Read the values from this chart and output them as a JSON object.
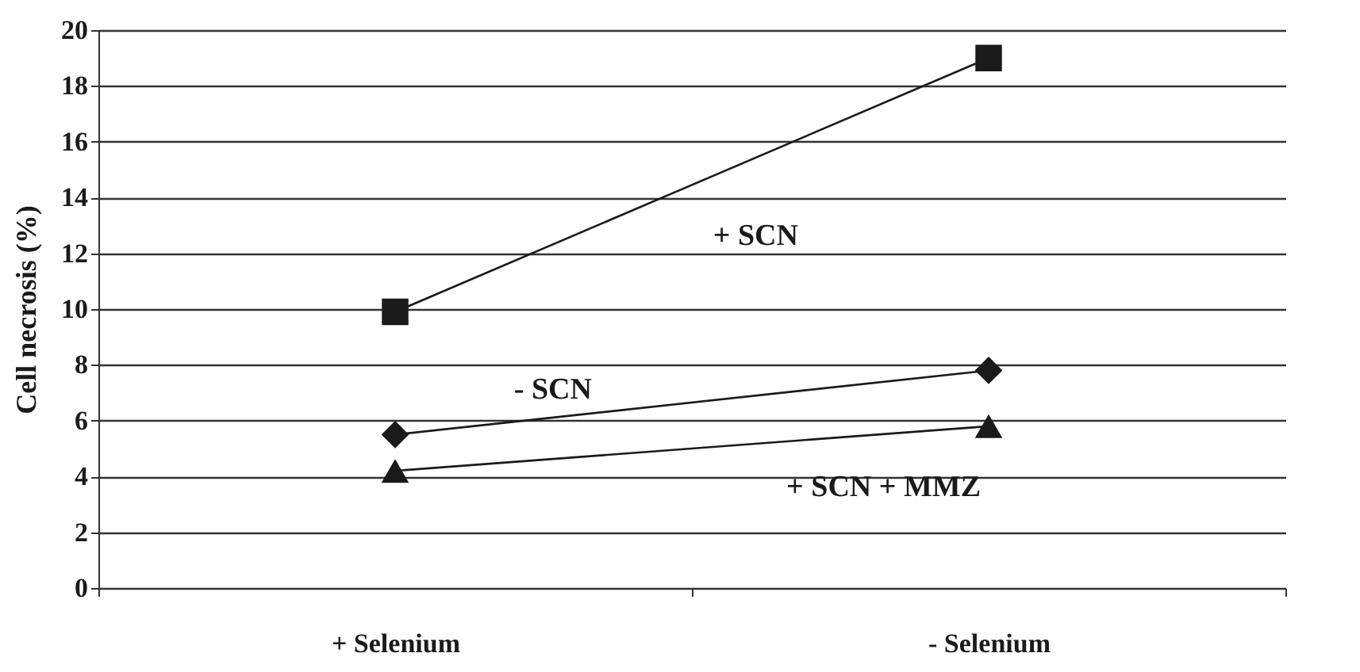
{
  "chart_data": {
    "type": "line",
    "ylabel": "Cell necrosis (%)",
    "categories": [
      "+ Selenium",
      "- Selenium"
    ],
    "series": [
      {
        "name": "+ SCN",
        "color": "#1a1a1a",
        "marker": "square",
        "values": [
          9.9,
          19
        ]
      },
      {
        "name": "- SCN",
        "color": "#1a1a1a",
        "marker": "diamond",
        "values": [
          5.5,
          7.8
        ]
      },
      {
        "name": "+ SCN + MMZ",
        "color": "#1a1a1a",
        "marker": "triangle",
        "values": [
          4.2,
          5.8
        ]
      }
    ],
    "ylim": [
      0,
      20
    ],
    "yticks": [
      0,
      2,
      4,
      6,
      8,
      10,
      12,
      14,
      16,
      18,
      20
    ],
    "grid": "y"
  }
}
